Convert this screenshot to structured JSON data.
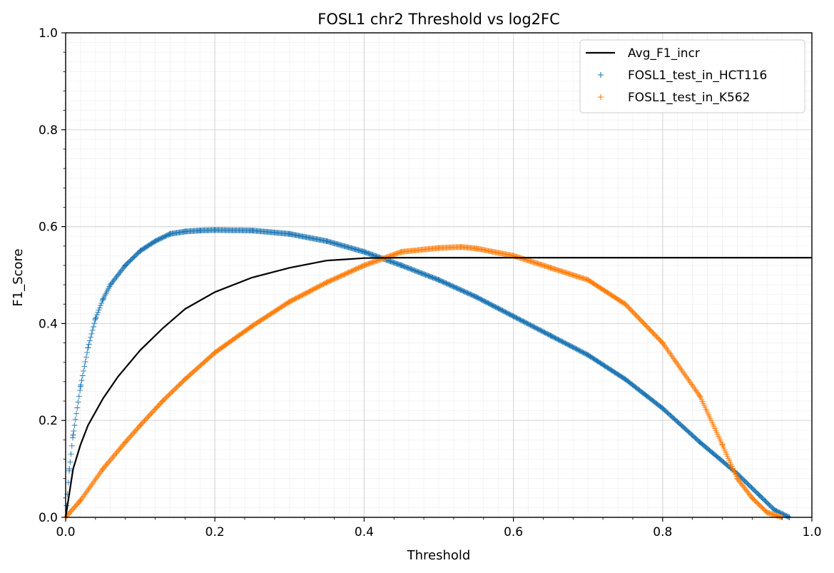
{
  "chart_data": {
    "type": "scatter",
    "title": "FOSL1 chr2 Threshold vs log2FC",
    "xlabel": "Threshold",
    "ylabel": "F1_Score",
    "xlim": [
      0.0,
      1.0
    ],
    "ylim": [
      0.0,
      1.0
    ],
    "xticks": [
      "0.0",
      "0.2",
      "0.4",
      "0.6",
      "0.8",
      "1.0"
    ],
    "yticks": [
      "0.0",
      "0.2",
      "0.4",
      "0.6",
      "0.8",
      "1.0"
    ],
    "grid": true,
    "minor_grid": true,
    "legend_position": "top-right",
    "series": [
      {
        "name": "Avg_F1_incr",
        "kind": "line",
        "color": "#000000",
        "x": [
          0.0,
          0.01,
          0.02,
          0.03,
          0.05,
          0.07,
          0.1,
          0.13,
          0.16,
          0.2,
          0.25,
          0.3,
          0.35,
          0.38,
          0.4,
          0.45,
          0.5,
          0.6,
          0.7,
          0.8,
          0.9,
          1.0
        ],
        "y": [
          0.0,
          0.1,
          0.15,
          0.19,
          0.245,
          0.29,
          0.345,
          0.39,
          0.43,
          0.465,
          0.495,
          0.515,
          0.53,
          0.533,
          0.535,
          0.536,
          0.536,
          0.536,
          0.536,
          0.536,
          0.536,
          0.536
        ]
      },
      {
        "name": "FOSL1_test_in_HCT116",
        "kind": "scatter",
        "marker": "+",
        "color": "#1f77b4",
        "x": [
          0.0,
          0.005,
          0.01,
          0.02,
          0.03,
          0.04,
          0.05,
          0.06,
          0.08,
          0.1,
          0.12,
          0.14,
          0.16,
          0.18,
          0.2,
          0.25,
          0.3,
          0.35,
          0.4,
          0.45,
          0.5,
          0.55,
          0.6,
          0.65,
          0.7,
          0.75,
          0.8,
          0.85,
          0.9,
          0.93,
          0.95,
          0.97
        ],
        "y": [
          0.0,
          0.1,
          0.17,
          0.27,
          0.35,
          0.41,
          0.45,
          0.48,
          0.52,
          0.55,
          0.57,
          0.585,
          0.59,
          0.592,
          0.593,
          0.592,
          0.585,
          0.57,
          0.548,
          0.52,
          0.49,
          0.455,
          0.415,
          0.375,
          0.335,
          0.285,
          0.225,
          0.155,
          0.09,
          0.045,
          0.015,
          0.0
        ]
      },
      {
        "name": "FOSL1_test_in_K562",
        "kind": "scatter",
        "marker": "+",
        "color": "#ff7f0e",
        "x": [
          0.0,
          0.02,
          0.05,
          0.08,
          0.1,
          0.13,
          0.16,
          0.2,
          0.25,
          0.3,
          0.35,
          0.4,
          0.45,
          0.5,
          0.53,
          0.55,
          0.6,
          0.65,
          0.7,
          0.75,
          0.8,
          0.85,
          0.88,
          0.9,
          0.92,
          0.94,
          0.96
        ],
        "y": [
          0.0,
          0.035,
          0.1,
          0.155,
          0.19,
          0.24,
          0.285,
          0.34,
          0.395,
          0.445,
          0.485,
          0.52,
          0.548,
          0.556,
          0.558,
          0.555,
          0.54,
          0.515,
          0.49,
          0.44,
          0.36,
          0.25,
          0.15,
          0.08,
          0.04,
          0.01,
          0.0
        ]
      }
    ]
  }
}
